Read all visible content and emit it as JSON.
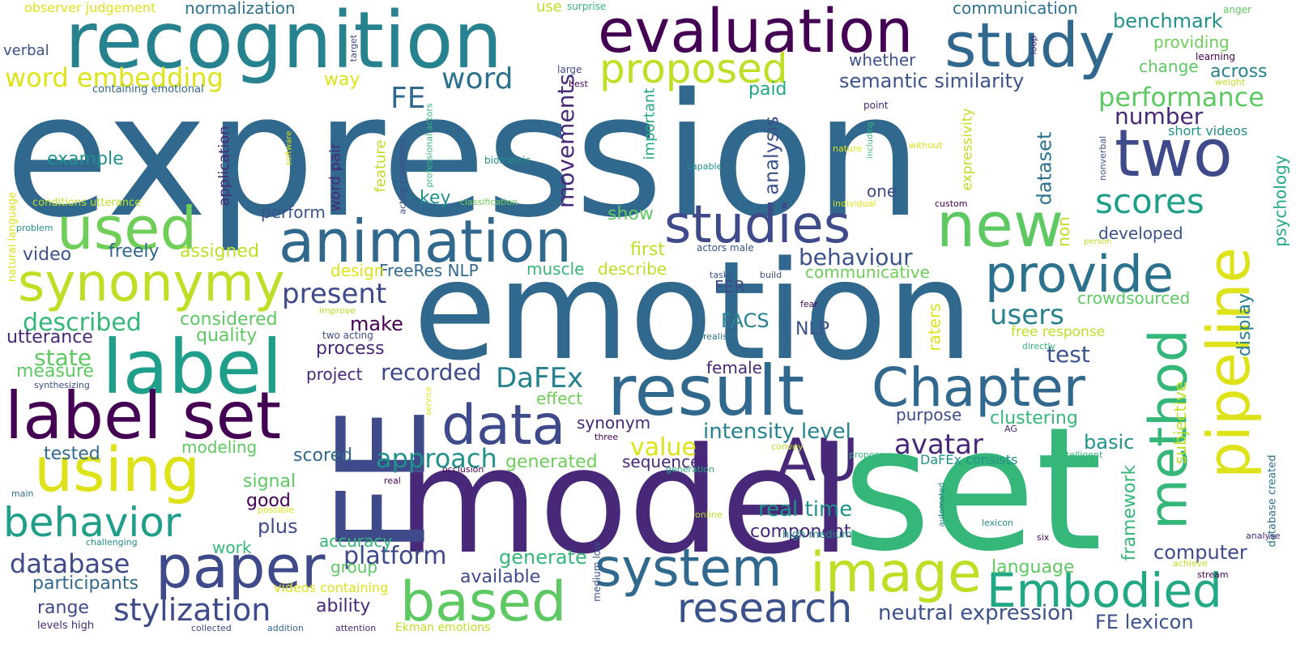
{
  "word_cloud": {
    "background_color": "#ffffff",
    "color_scheme": "viridis",
    "words": [
      {
        "text": "expression",
        "color": "#31688e",
        "vertical": false
      },
      {
        "text": "emotion",
        "color": "#31688e",
        "vertical": false
      },
      {
        "text": "model",
        "color": "#482878",
        "vertical": false
      },
      {
        "text": "set",
        "color": "#35b779",
        "vertical": false
      },
      {
        "text": "FE",
        "color": "#3e4a89",
        "vertical": true
      },
      {
        "text": "recognition",
        "color": "#26828e",
        "vertical": false
      },
      {
        "text": "evaluation",
        "color": "#440154",
        "vertical": false
      },
      {
        "text": "study",
        "color": "#31688e",
        "vertical": false
      },
      {
        "text": "two",
        "color": "#3e4a89",
        "vertical": false
      },
      {
        "text": "label",
        "color": "#1f9e89",
        "vertical": false
      },
      {
        "text": "label set",
        "color": "#440154",
        "vertical": false
      },
      {
        "text": "result",
        "color": "#31688e",
        "vertical": false
      },
      {
        "text": "animation",
        "color": "#31688e",
        "vertical": false
      },
      {
        "text": "studies",
        "color": "#3e4a89",
        "vertical": false
      },
      {
        "text": "synonymy",
        "color": "#bddf26",
        "vertical": false
      },
      {
        "text": "used",
        "color": "#6ece58",
        "vertical": false
      },
      {
        "text": "using",
        "color": "#dde318",
        "vertical": false
      },
      {
        "text": "new",
        "color": "#5ec962",
        "vertical": false
      },
      {
        "text": "data",
        "color": "#3e4a89",
        "vertical": false
      },
      {
        "text": "Chapter",
        "color": "#31688e",
        "vertical": false
      },
      {
        "text": "AU",
        "color": "#482878",
        "vertical": false
      },
      {
        "text": "method",
        "color": "#35b779",
        "vertical": true
      },
      {
        "text": "pipeline",
        "color": "#dde318",
        "vertical": true
      },
      {
        "text": "provide",
        "color": "#2c728e",
        "vertical": false
      },
      {
        "text": "paper",
        "color": "#3e4a89",
        "vertical": false
      },
      {
        "text": "image",
        "color": "#bddf26",
        "vertical": false
      },
      {
        "text": "system",
        "color": "#31688e",
        "vertical": false
      },
      {
        "text": "based",
        "color": "#5ec962",
        "vertical": false
      },
      {
        "text": "research",
        "color": "#3b528b",
        "vertical": false
      },
      {
        "text": "Embodied",
        "color": "#22a884",
        "vertical": false
      },
      {
        "text": "behavior",
        "color": "#1f9e89",
        "vertical": false
      },
      {
        "text": "proposed",
        "color": "#bddf26",
        "vertical": false
      },
      {
        "text": "scores",
        "color": "#1f9e89",
        "vertical": false
      },
      {
        "text": "stylization",
        "color": "#3e4a89",
        "vertical": false
      },
      {
        "text": "database",
        "color": "#3e4a89",
        "vertical": false
      },
      {
        "text": "word embedding",
        "color": "#dde318",
        "vertical": false
      },
      {
        "text": "FE",
        "color": "#31688e",
        "vertical": false
      },
      {
        "text": "word",
        "color": "#2c728e",
        "vertical": false
      },
      {
        "text": "performance",
        "color": "#5ec962",
        "vertical": false
      },
      {
        "text": "semantic similarity",
        "color": "#3b528b",
        "vertical": false
      },
      {
        "text": "present",
        "color": "#3e4a89",
        "vertical": false
      },
      {
        "text": "DaFEx",
        "color": "#26828e",
        "vertical": false
      },
      {
        "text": "recorded",
        "color": "#3e4a89",
        "vertical": false
      },
      {
        "text": "approach",
        "color": "#21918c",
        "vertical": false
      },
      {
        "text": "avatar",
        "color": "#482878",
        "vertical": false
      },
      {
        "text": "users",
        "color": "#26828e",
        "vertical": false
      },
      {
        "text": "intensity level",
        "color": "#26828e",
        "vertical": false
      },
      {
        "text": "platform",
        "color": "#3e4a89",
        "vertical": false
      },
      {
        "text": "described",
        "color": "#35b779",
        "vertical": false
      },
      {
        "text": "value",
        "color": "#dde318",
        "vertical": false
      },
      {
        "text": "real time",
        "color": "#21918c",
        "vertical": false
      },
      {
        "text": "neutral expression",
        "color": "#3b528b",
        "vertical": false
      },
      {
        "text": "FE lexicon",
        "color": "#3b528b",
        "vertical": false
      },
      {
        "text": "movements",
        "color": "#482878",
        "vertical": true
      },
      {
        "text": "behaviour",
        "color": "#3b528b",
        "vertical": false
      },
      {
        "text": "analysis",
        "color": "#3b528b",
        "vertical": true
      },
      {
        "text": "dataset",
        "color": "#2c728e",
        "vertical": true
      },
      {
        "text": "number",
        "color": "#482878",
        "vertical": false
      },
      {
        "text": "benchmark",
        "color": "#21918c",
        "vertical": false
      },
      {
        "text": "across",
        "color": "#26828e",
        "vertical": false
      },
      {
        "text": "display",
        "color": "#26828e",
        "vertical": true
      },
      {
        "text": "psychology",
        "color": "#22a884",
        "vertical": true
      },
      {
        "text": "test",
        "color": "#3b528b",
        "vertical": false
      },
      {
        "text": "clustering",
        "color": "#35b779",
        "vertical": false
      },
      {
        "text": "basic",
        "color": "#21918c",
        "vertical": false
      },
      {
        "text": "framework",
        "color": "#35b779",
        "vertical": true
      },
      {
        "text": "computer",
        "color": "#3e4a89",
        "vertical": false
      },
      {
        "text": "language",
        "color": "#5ec962",
        "vertical": false
      },
      {
        "text": "generate",
        "color": "#35b779",
        "vertical": false
      },
      {
        "text": "available",
        "color": "#3e4a89",
        "vertical": false
      },
      {
        "text": "generated",
        "color": "#6ece58",
        "vertical": false
      },
      {
        "text": "sequences",
        "color": "#482878",
        "vertical": false
      },
      {
        "text": "component",
        "color": "#482878",
        "vertical": false
      },
      {
        "text": "accuracy",
        "color": "#35b779",
        "vertical": false
      },
      {
        "text": "plus",
        "color": "#3e4a89",
        "vertical": false
      },
      {
        "text": "signal",
        "color": "#5ec962",
        "vertical": false
      },
      {
        "text": "good",
        "color": "#440154",
        "vertical": false
      },
      {
        "text": "work",
        "color": "#35b779",
        "vertical": false
      },
      {
        "text": "ability",
        "color": "#482878",
        "vertical": false
      },
      {
        "text": "group",
        "color": "#5ec962",
        "vertical": false
      },
      {
        "text": "range",
        "color": "#3e4a89",
        "vertical": false
      },
      {
        "text": "participants",
        "color": "#31688e",
        "vertical": false
      },
      {
        "text": "modeling",
        "color": "#5ec962",
        "vertical": false
      },
      {
        "text": "scored",
        "color": "#31688e",
        "vertical": false
      },
      {
        "text": "tested",
        "color": "#31688e",
        "vertical": false
      },
      {
        "text": "measure",
        "color": "#5ec962",
        "vertical": false
      },
      {
        "text": "state",
        "color": "#5ec962",
        "vertical": false
      },
      {
        "text": "utterance",
        "color": "#482878",
        "vertical": false
      },
      {
        "text": "quality",
        "color": "#5ec962",
        "vertical": false
      },
      {
        "text": "considered",
        "color": "#5ec962",
        "vertical": false
      },
      {
        "text": "make",
        "color": "#440154",
        "vertical": false
      },
      {
        "text": "process",
        "color": "#482878",
        "vertical": false
      },
      {
        "text": "project",
        "color": "#482878",
        "vertical": false
      },
      {
        "text": "effect",
        "color": "#6ece58",
        "vertical": false
      },
      {
        "text": "synonym",
        "color": "#482878",
        "vertical": false
      },
      {
        "text": "female",
        "color": "#482878",
        "vertical": false
      },
      {
        "text": "FACS",
        "color": "#26828e",
        "vertical": false
      },
      {
        "text": "NLP",
        "color": "#3b528b",
        "vertical": false
      },
      {
        "text": "FER",
        "color": "#3e4a89",
        "vertical": false
      },
      {
        "text": "communicative",
        "color": "#6ece58",
        "vertical": false
      },
      {
        "text": "describe",
        "color": "#bddf26",
        "vertical": false
      },
      {
        "text": "muscle",
        "color": "#35b779",
        "vertical": false
      },
      {
        "text": "FreeRes NLP",
        "color": "#31688e",
        "vertical": false
      },
      {
        "text": "design",
        "color": "#dde318",
        "vertical": false
      },
      {
        "text": "video",
        "color": "#3b528b",
        "vertical": false
      },
      {
        "text": "freely",
        "color": "#31688e",
        "vertical": false
      },
      {
        "text": "assigned",
        "color": "#bddf26",
        "vertical": false
      },
      {
        "text": "first",
        "color": "#bddf26",
        "vertical": false
      },
      {
        "text": "show",
        "color": "#5ec962",
        "vertical": false
      },
      {
        "text": "key",
        "color": "#21918c",
        "vertical": false
      },
      {
        "text": "perform",
        "color": "#3b528b",
        "vertical": false
      },
      {
        "text": "example",
        "color": "#21918c",
        "vertical": false
      },
      {
        "text": "paid",
        "color": "#22a884",
        "vertical": false
      },
      {
        "text": "way",
        "color": "#dde318",
        "vertical": false
      },
      {
        "text": "whether",
        "color": "#3b528b",
        "vertical": false
      },
      {
        "text": "one",
        "color": "#3e4a89",
        "vertical": false
      },
      {
        "text": "non",
        "color": "#bddf26",
        "vertical": true
      },
      {
        "text": "purpose",
        "color": "#3e4a89",
        "vertical": false
      },
      {
        "text": "developed",
        "color": "#3b528b",
        "vertical": false
      },
      {
        "text": "crowdsourced",
        "color": "#5ec962",
        "vertical": false
      },
      {
        "text": "free response",
        "color": "#bddf26",
        "vertical": false
      },
      {
        "text": "subjective",
        "color": "#bddf26",
        "vertical": true
      },
      {
        "text": "raters",
        "color": "#dde318",
        "vertical": true
      },
      {
        "text": "expressivity",
        "color": "#bddf26",
        "vertical": true
      },
      {
        "text": "change",
        "color": "#5ec962",
        "vertical": false
      },
      {
        "text": "providing",
        "color": "#6ece58",
        "vertical": false
      },
      {
        "text": "short videos",
        "color": "#21918c",
        "vertical": false
      },
      {
        "text": "communication",
        "color": "#2c728e",
        "vertical": false
      },
      {
        "text": "normalization",
        "color": "#2c728e",
        "vertical": false
      },
      {
        "text": "verbal",
        "color": "#3b528b",
        "vertical": false
      },
      {
        "text": "observer judgement",
        "color": "#dde318",
        "vertical": false
      },
      {
        "text": "containing emotional",
        "color": "#31688e",
        "vertical": false
      },
      {
        "text": "use",
        "color": "#bddf26",
        "vertical": false
      },
      {
        "text": "surprise",
        "color": "#35b779",
        "vertical": false
      },
      {
        "text": "target",
        "color": "#3e4a89",
        "vertical": true
      },
      {
        "text": "large",
        "color": "#3e4a89",
        "vertical": false
      },
      {
        "text": "best",
        "color": "#440154",
        "vertical": false
      },
      {
        "text": "loop",
        "color": "#482878",
        "vertical": true
      },
      {
        "text": "learning",
        "color": "#440154",
        "vertical": false
      },
      {
        "text": "anger",
        "color": "#5ec962",
        "vertical": false
      },
      {
        "text": "weight",
        "color": "#bddf26",
        "vertical": false
      },
      {
        "text": "point",
        "color": "#482878",
        "vertical": false
      },
      {
        "text": "important",
        "color": "#22a884",
        "vertical": true
      },
      {
        "text": "application",
        "color": "#482878",
        "vertical": true
      },
      {
        "text": "word pair",
        "color": "#482878",
        "vertical": true
      },
      {
        "text": "feature",
        "color": "#bddf26",
        "vertical": true
      },
      {
        "text": "acting conditions",
        "color": "#3e4a89",
        "vertical": true
      },
      {
        "text": "professional actors",
        "color": "#35b779",
        "vertical": true
      },
      {
        "text": "software",
        "color": "#dde318",
        "vertical": true
      },
      {
        "text": "biometric",
        "color": "#21918c",
        "vertical": false
      },
      {
        "text": "classification",
        "color": "#6ece58",
        "vertical": false
      },
      {
        "text": "nature",
        "color": "#dde318",
        "vertical": false
      },
      {
        "text": "including",
        "color": "#35b779",
        "vertical": true
      },
      {
        "text": "without",
        "color": "#dde318",
        "vertical": false
      },
      {
        "text": "capable",
        "color": "#21918c",
        "vertical": false
      },
      {
        "text": "nonverbal",
        "color": "#3b528b",
        "vertical": true
      },
      {
        "text": "individual",
        "color": "#dde318",
        "vertical": false
      },
      {
        "text": "custom",
        "color": "#440154",
        "vertical": false
      },
      {
        "text": "person",
        "color": "#bddf26",
        "vertical": false
      },
      {
        "text": "actors male",
        "color": "#3b528b",
        "vertical": false
      },
      {
        "text": "tasks",
        "color": "#3b528b",
        "vertical": false
      },
      {
        "text": "build",
        "color": "#3e4a89",
        "vertical": false
      },
      {
        "text": "fear",
        "color": "#440154",
        "vertical": false
      },
      {
        "text": "realistic",
        "color": "#2c728e",
        "vertical": false
      },
      {
        "text": "directly",
        "color": "#35b779",
        "vertical": false
      },
      {
        "text": "two acting",
        "color": "#3e4a89",
        "vertical": false
      },
      {
        "text": "improve",
        "color": "#bddf26",
        "vertical": false
      },
      {
        "text": "natural language",
        "color": "#dde318",
        "vertical": true
      },
      {
        "text": "conditions utterance",
        "color": "#bddf26",
        "vertical": false
      },
      {
        "text": "problem",
        "color": "#21918c",
        "vertical": false
      },
      {
        "text": "synthesizing",
        "color": "#3e4a89",
        "vertical": false
      },
      {
        "text": "service",
        "color": "#dde318",
        "vertical": true
      },
      {
        "text": "AG",
        "color": "#482878",
        "vertical": false
      },
      {
        "text": "three",
        "color": "#440154",
        "vertical": false
      },
      {
        "text": "convey",
        "color": "#bddf26",
        "vertical": false
      },
      {
        "text": "propose",
        "color": "#35b779",
        "vertical": false
      },
      {
        "text": "intelligent",
        "color": "#35b779",
        "vertical": false
      },
      {
        "text": "DaFEx consists",
        "color": "#21918c",
        "vertical": false
      },
      {
        "text": "occlusion",
        "color": "#440154",
        "vertical": false
      },
      {
        "text": "generation",
        "color": "#22a884",
        "vertical": false
      },
      {
        "text": "real",
        "color": "#440154",
        "vertical": false
      },
      {
        "text": "main",
        "color": "#2c728e",
        "vertical": false
      },
      {
        "text": "possible",
        "color": "#dde318",
        "vertical": false
      },
      {
        "text": "challenging",
        "color": "#21918c",
        "vertical": false
      },
      {
        "text": "online",
        "color": "#bddf26",
        "vertical": false
      },
      {
        "text": "high medium",
        "color": "#21918c",
        "vertical": false
      },
      {
        "text": "automated",
        "color": "#26828e",
        "vertical": true
      },
      {
        "text": "lexicon",
        "color": "#21918c",
        "vertical": false
      },
      {
        "text": "six",
        "color": "#440154",
        "vertical": false
      },
      {
        "text": "database created",
        "color": "#2c728e",
        "vertical": true
      },
      {
        "text": "analyse",
        "color": "#482878",
        "vertical": false
      },
      {
        "text": "achieve",
        "color": "#bddf26",
        "vertical": false
      },
      {
        "text": "stream",
        "color": "#440154",
        "vertical": false
      },
      {
        "text": "medium low",
        "color": "#3b528b",
        "vertical": true
      },
      {
        "text": "videos containing",
        "color": "#dde318",
        "vertical": false
      },
      {
        "text": "Ekman emotions",
        "color": "#bddf26",
        "vertical": false
      },
      {
        "text": "attention",
        "color": "#482878",
        "vertical": false
      },
      {
        "text": "addition",
        "color": "#31688e",
        "vertical": false
      },
      {
        "text": "collected",
        "color": "#3e4a89",
        "vertical": false
      },
      {
        "text": "levels high",
        "color": "#482878",
        "vertical": false
      }
    ]
  }
}
